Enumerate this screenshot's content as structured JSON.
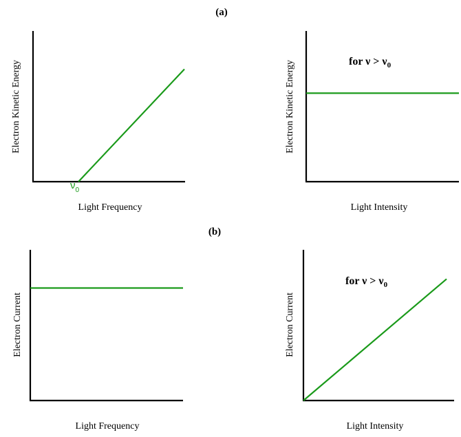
{
  "part_labels": {
    "a": "(a)",
    "b": "(b)"
  },
  "colors": {
    "series": "#1a9a1a",
    "axis": "#000000",
    "text": "#000000"
  },
  "chart_data": [
    {
      "id": "a-left",
      "type": "line",
      "xlabel": "Light Frequency",
      "ylabel": "Electron Kinetic Energy",
      "annotation": "",
      "tick_label": {
        "base": "ν",
        "sub": "0"
      },
      "grid": false,
      "xlim": [
        0,
        10
      ],
      "ylim": [
        0,
        10
      ],
      "series": [
        {
          "x": [
            3,
            10
          ],
          "y": [
            0,
            7.5
          ]
        }
      ]
    },
    {
      "id": "a-right",
      "type": "line",
      "xlabel": "Light Intensity",
      "ylabel": "Electron Kinetic Energy",
      "annotation": "for ν > ν0",
      "annotation_parts": {
        "pre": "for ν > ν",
        "sub": "0"
      },
      "grid": false,
      "xlim": [
        0,
        10
      ],
      "ylim": [
        0,
        10
      ],
      "series": [
        {
          "x": [
            0,
            10
          ],
          "y": [
            5.9,
            5.9
          ]
        }
      ]
    },
    {
      "id": "b-left",
      "type": "line",
      "xlabel": "Light Frequency",
      "ylabel": "Electron Current",
      "annotation": "",
      "grid": false,
      "xlim": [
        0,
        10
      ],
      "ylim": [
        0,
        10
      ],
      "series": [
        {
          "x": [
            0,
            10
          ],
          "y": [
            7.5,
            7.5
          ]
        }
      ]
    },
    {
      "id": "b-right",
      "type": "line",
      "xlabel": "Light Intensity",
      "ylabel": "Electron Current",
      "annotation": "for ν > ν0",
      "annotation_parts": {
        "pre": "for ν > ν",
        "sub": "0"
      },
      "grid": false,
      "xlim": [
        0,
        10
      ],
      "ylim": [
        0,
        10
      ],
      "series": [
        {
          "x": [
            0,
            10
          ],
          "y": [
            0,
            8.1
          ]
        }
      ]
    }
  ]
}
